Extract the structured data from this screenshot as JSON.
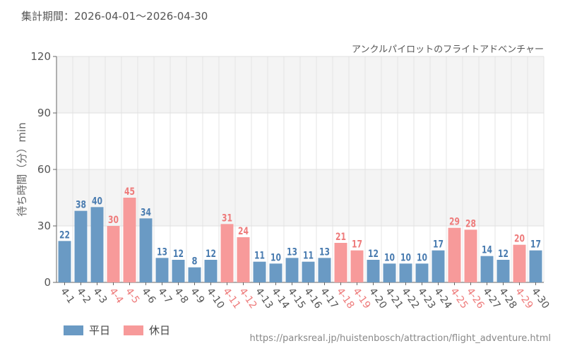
{
  "header": {
    "period_label": "集計期間：2026-04-01～2026-04-30"
  },
  "legend": {
    "weekday_label": "平日",
    "holiday_label": "休日"
  },
  "source_url": "https://parksreal.jp/huistenbosch/attraction/flight_adventure.html",
  "colors": {
    "weekday": "#6a9ac4",
    "weekday_text": "#4a7cb0",
    "holiday": "#f79a9a",
    "holiday_text": "#ee7b7b",
    "axis_text": "#555555"
  },
  "chart_data": {
    "type": "bar",
    "title": "アンクルパイロットのフライトアドベンチャー",
    "ylabel": "待ち時間（分）min",
    "xlabel": "",
    "ylim": [
      0,
      120
    ],
    "yticks": [
      0,
      30,
      60,
      90,
      120
    ],
    "grid": true,
    "legend_position": "bottom-left",
    "categories": [
      "4-1",
      "4-2",
      "4-3",
      "4-4",
      "4-5",
      "4-6",
      "4-7",
      "4-8",
      "4-9",
      "4-10",
      "4-11",
      "4-12",
      "4-13",
      "4-14",
      "4-15",
      "4-16",
      "4-17",
      "4-18",
      "4-19",
      "4-20",
      "4-21",
      "4-22",
      "4-23",
      "4-24",
      "4-25",
      "4-26",
      "4-27",
      "4-28",
      "4-29",
      "4-30"
    ],
    "values": [
      22,
      38,
      40,
      30,
      45,
      34,
      13,
      12,
      8,
      12,
      31,
      24,
      11,
      10,
      13,
      11,
      13,
      21,
      17,
      12,
      10,
      10,
      10,
      17,
      29,
      28,
      14,
      12,
      20,
      17
    ],
    "day_type": [
      "平日",
      "平日",
      "平日",
      "休日",
      "休日",
      "平日",
      "平日",
      "平日",
      "平日",
      "平日",
      "休日",
      "休日",
      "平日",
      "平日",
      "平日",
      "平日",
      "平日",
      "休日",
      "休日",
      "平日",
      "平日",
      "平日",
      "平日",
      "平日",
      "休日",
      "休日",
      "平日",
      "平日",
      "休日",
      "平日"
    ]
  }
}
